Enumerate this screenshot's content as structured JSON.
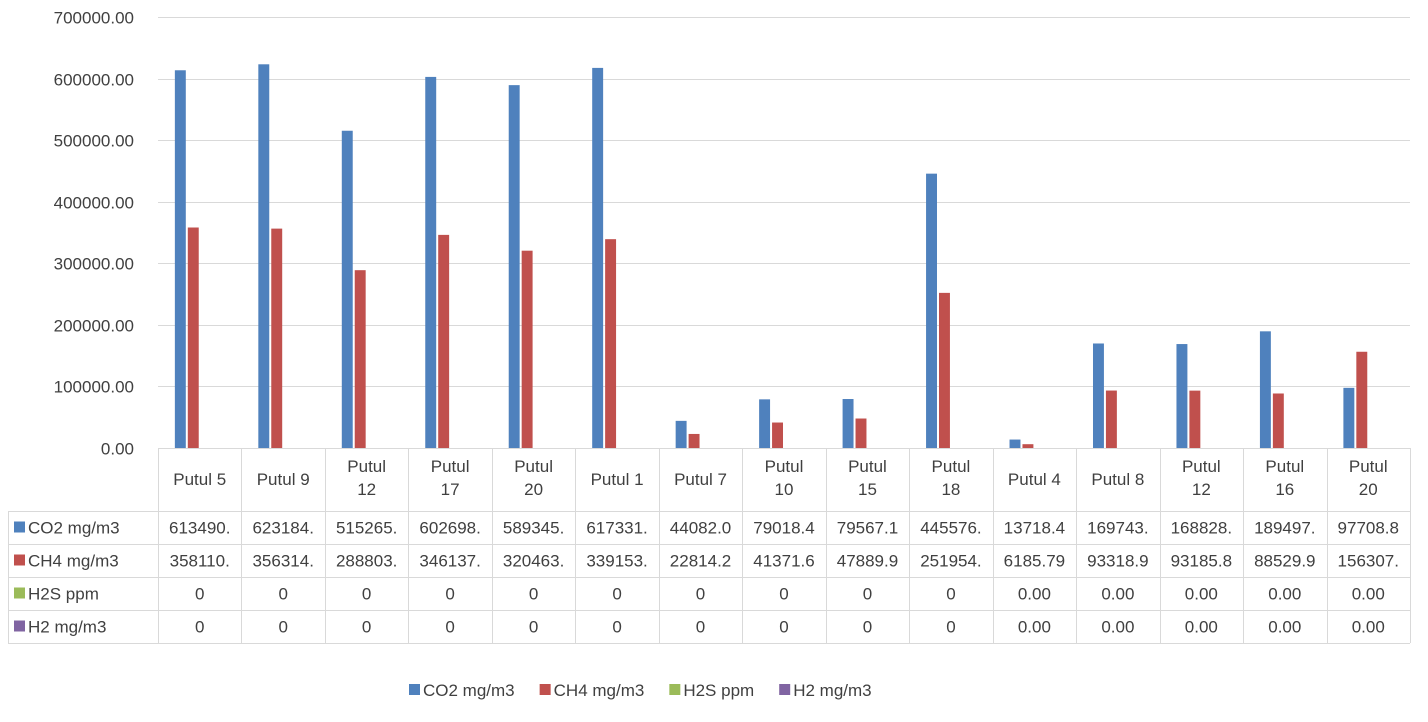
{
  "chart_data": {
    "type": "bar",
    "title": "",
    "xlabel": "",
    "ylabel": "",
    "ylim": [
      0,
      700000
    ],
    "y_ticks": [
      0,
      100000,
      200000,
      300000,
      400000,
      500000,
      600000,
      700000
    ],
    "y_tick_labels": [
      "0.00",
      "100000.00",
      "200000.00",
      "300000.00",
      "400000.00",
      "500000.00",
      "600000.00",
      "700000.00"
    ],
    "grid": true,
    "legend_position": "bottom",
    "data_table": true,
    "categories": [
      "Putul 5",
      "Putul 9",
      "Putul 12",
      "Putul 17",
      "Putul 20",
      "Putul 1",
      "Putul 7",
      "Putul 10",
      "Putul 15",
      "Putul 18",
      "Putul 4",
      "Putul 8",
      "Putul 12",
      "Putul 16",
      "Putul 20"
    ],
    "series": [
      {
        "name": "CO2 mg/m3",
        "color": "#4F81BD",
        "values": [
          613490,
          623184,
          515265,
          602698,
          589345,
          617331,
          44082.0,
          79018.4,
          79567.1,
          445576,
          13718.4,
          169743,
          168828,
          189497,
          97708.8
        ],
        "table_values": [
          "613490.",
          "623184.",
          "515265.",
          "602698.",
          "589345.",
          "617331.",
          "44082.0",
          "79018.4",
          "79567.1",
          "445576.",
          "13718.4",
          "169743.",
          "168828.",
          "189497.",
          "97708.8"
        ]
      },
      {
        "name": "CH4 mg/m3",
        "color": "#C0504D",
        "values": [
          358110,
          356314,
          288803,
          346137,
          320463,
          339153,
          22814.2,
          41371.6,
          47889.9,
          251954,
          6185.79,
          93318.9,
          93185.8,
          88529.9,
          156307
        ],
        "table_values": [
          "358110.",
          "356314.",
          "288803.",
          "346137.",
          "320463.",
          "339153.",
          "22814.2",
          "41371.6",
          "47889.9",
          "251954.",
          "6185.79",
          "93318.9",
          "93185.8",
          "88529.9",
          "156307."
        ]
      },
      {
        "name": "H2S ppm",
        "color": "#9BBB59",
        "values": [
          0,
          0,
          0,
          0,
          0,
          0,
          0,
          0,
          0,
          0,
          0,
          0,
          0,
          0,
          0
        ],
        "table_values": [
          "0",
          "0",
          "0",
          "0",
          "0",
          "0",
          "0",
          "0",
          "0",
          "0",
          "0.00",
          "0.00",
          "0.00",
          "0.00",
          "0.00"
        ]
      },
      {
        "name": "H2 mg/m3",
        "color": "#8064A2",
        "values": [
          0,
          0,
          0,
          0,
          0,
          0,
          0,
          0,
          0,
          0,
          0,
          0,
          0,
          0,
          0
        ],
        "table_values": [
          "0",
          "0",
          "0",
          "0",
          "0",
          "0",
          "0",
          "0",
          "0",
          "0",
          "0.00",
          "0.00",
          "0.00",
          "0.00",
          "0.00"
        ]
      }
    ]
  }
}
